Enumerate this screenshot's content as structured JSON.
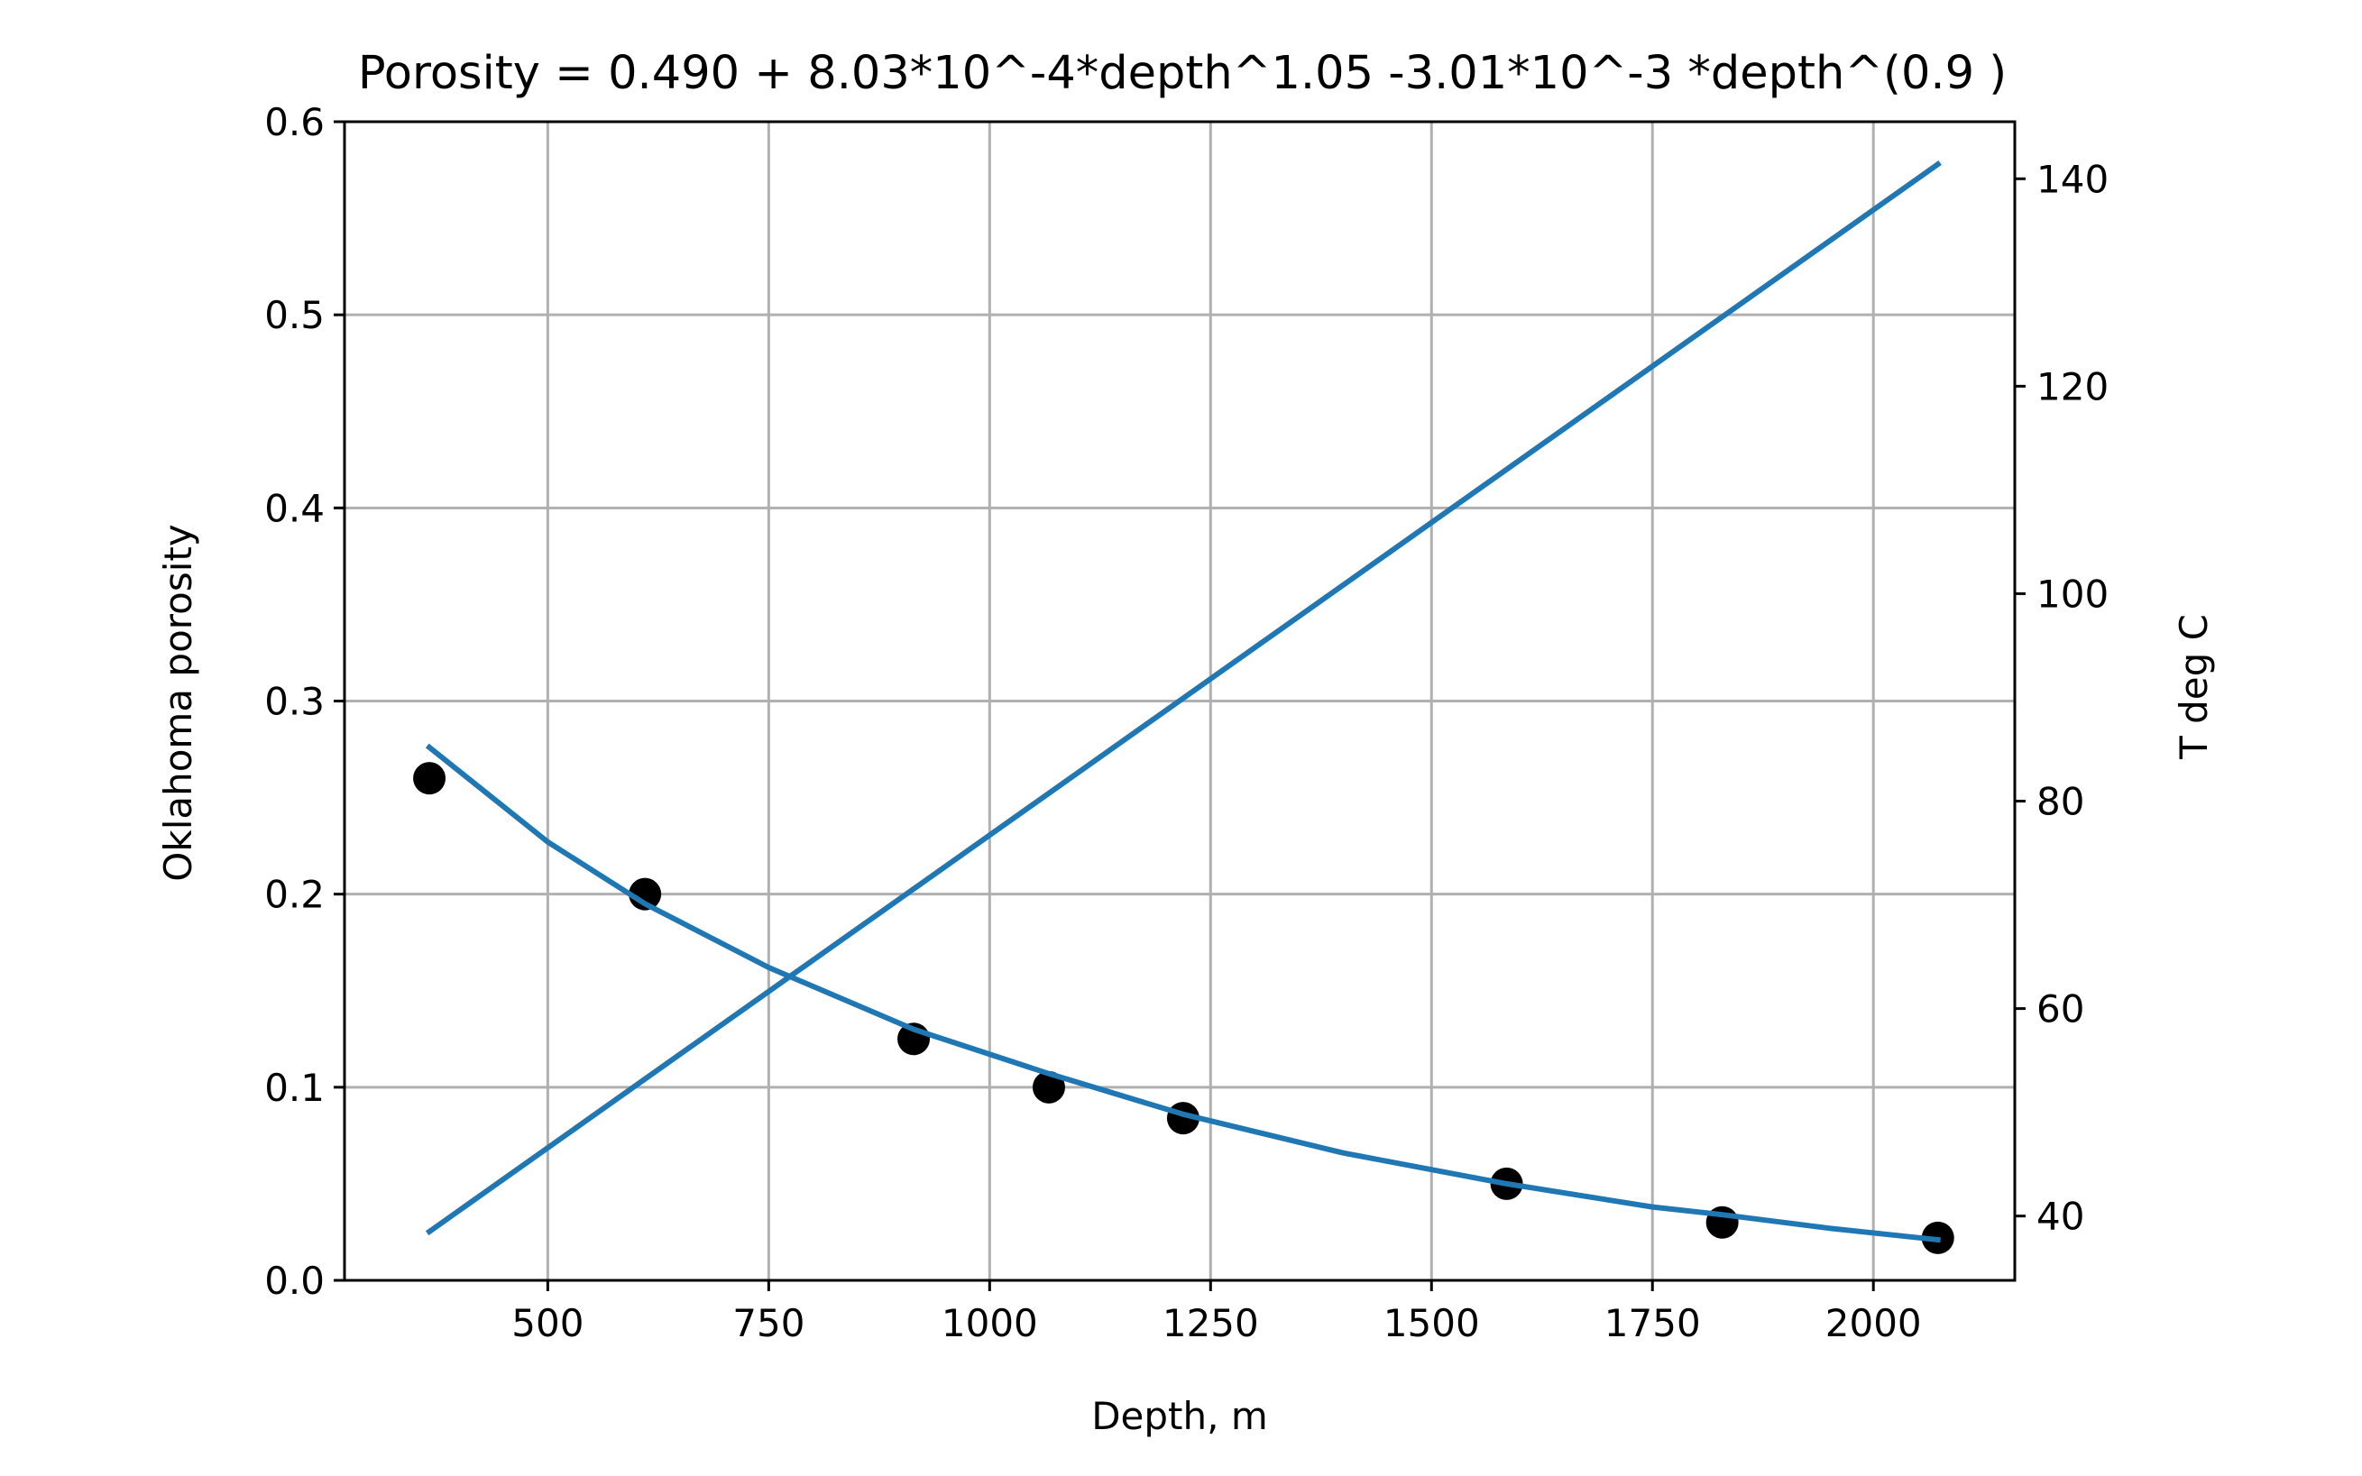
{
  "chart_data": {
    "type": "line",
    "title": "Porosity = 0.490 + 8.03*10^-4*depth^1.05 -3.01*10^-3 *depth^(0.9 )",
    "xlabel": "Depth, m",
    "ylabel": "Oklahoma porosity",
    "y2label": "T deg C",
    "xlim": [
      270,
      2160
    ],
    "ylim": [
      0,
      0.6
    ],
    "y2lim": [
      33.8,
      145.5
    ],
    "grid": true,
    "x_ticks": [
      500,
      750,
      1000,
      1250,
      1500,
      1750,
      2000
    ],
    "y_ticks": [
      0.0,
      0.1,
      0.2,
      0.3,
      0.4,
      0.5,
      0.6
    ],
    "y2_ticks": [
      40,
      60,
      80,
      100,
      120,
      140
    ],
    "series": [
      {
        "type": "scatter",
        "axis": "left",
        "color": "#000000",
        "x": [
          366,
          610,
          914,
          1067,
          1219,
          1585,
          1829,
          2073
        ],
        "y": [
          0.26,
          0.2,
          0.125,
          0.1,
          0.084,
          0.05,
          0.03,
          0.022
        ]
      },
      {
        "type": "line",
        "axis": "left",
        "color": "#1f77b4",
        "x": [
          366,
          500,
          610,
          750,
          914,
          1067,
          1219,
          1400,
          1585,
          1750,
          1829,
          1950,
          2073
        ],
        "y": [
          0.276,
          0.227,
          0.195,
          0.162,
          0.13,
          0.107,
          0.086,
          0.066,
          0.05,
          0.038,
          0.034,
          0.027,
          0.021
        ]
      },
      {
        "type": "line",
        "axis": "right",
        "color": "#1f77b4",
        "x": [
          366,
          2073
        ],
        "y": [
          38.5,
          141.4
        ]
      }
    ]
  }
}
